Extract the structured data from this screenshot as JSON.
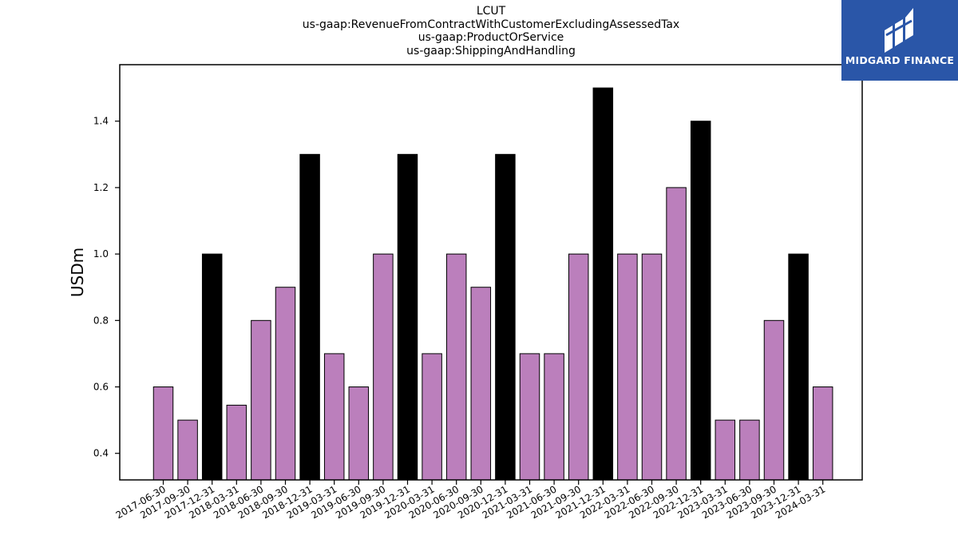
{
  "chart_data": {
    "type": "bar",
    "title_lines": [
      "LCUT",
      "us-gaap:RevenueFromContractWithCustomerExcludingAssessedTax",
      "us-gaap:ProductOrService",
      "us-gaap:ShippingAndHandling"
    ],
    "ylabel": "USDm",
    "xlabel": "",
    "ylim": [
      0.32,
      1.57
    ],
    "yticks": [
      "0.4",
      "0.6",
      "0.8",
      "1.0",
      "1.2",
      "1.4"
    ],
    "categories": [
      "2017-06-30",
      "2017-09-30",
      "2017-12-31",
      "2018-03-31",
      "2018-06-30",
      "2018-09-30",
      "2018-12-31",
      "2019-03-31",
      "2019-06-30",
      "2019-09-30",
      "2019-12-31",
      "2020-03-31",
      "2020-06-30",
      "2020-09-30",
      "2020-12-31",
      "2021-03-31",
      "2021-06-30",
      "2021-09-30",
      "2021-12-31",
      "2022-03-31",
      "2022-06-30",
      "2022-09-30",
      "2022-12-31",
      "2023-03-31",
      "2023-06-30",
      "2023-09-30",
      "2023-12-31",
      "2024-03-31"
    ],
    "values": [
      0.6,
      0.5,
      1.0,
      0.545,
      0.8,
      0.9,
      1.3,
      0.7,
      0.6,
      1.0,
      1.3,
      0.7,
      1.0,
      0.9,
      1.3,
      0.7,
      0.7,
      1.0,
      1.5,
      1.0,
      1.0,
      1.2,
      1.4,
      0.5,
      0.5,
      0.8,
      1.0,
      0.6
    ],
    "colors": {
      "quarter": "#bb7fbc",
      "year_end": "#000000",
      "edge": "#000000"
    },
    "year_end_highlight": true
  },
  "logo": {
    "text": "MIDGARD FINANCE",
    "bg": "#2a56a8"
  }
}
